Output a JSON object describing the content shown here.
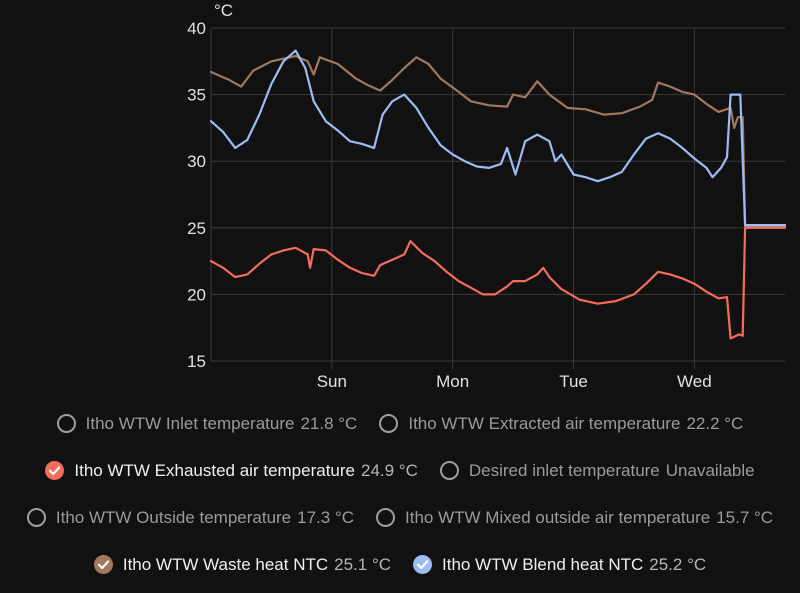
{
  "chart_data": {
    "type": "line",
    "unit_label": "°C",
    "ylim": [
      15,
      40
    ],
    "y_ticks": [
      15,
      20,
      25,
      30,
      35,
      40
    ],
    "xlim": [
      0,
      4.75
    ],
    "x_ticks": [
      {
        "x": 1,
        "label": "Sun"
      },
      {
        "x": 2,
        "label": "Mon"
      },
      {
        "x": 3,
        "label": "Tue"
      },
      {
        "x": 4,
        "label": "Wed"
      }
    ],
    "grid": true,
    "series": [
      {
        "name": "Itho WTW Waste heat NTC",
        "color": "#a1785b",
        "points": [
          [
            0,
            36.7
          ],
          [
            0.15,
            36.1
          ],
          [
            0.25,
            35.6
          ],
          [
            0.35,
            36.8
          ],
          [
            0.5,
            37.5
          ],
          [
            0.7,
            37.9
          ],
          [
            0.8,
            37.5
          ],
          [
            0.85,
            36.5
          ],
          [
            0.9,
            37.8
          ],
          [
            1.05,
            37.3
          ],
          [
            1.2,
            36.2
          ],
          [
            1.3,
            35.7
          ],
          [
            1.4,
            35.3
          ],
          [
            1.5,
            36.1
          ],
          [
            1.6,
            37
          ],
          [
            1.7,
            37.8
          ],
          [
            1.8,
            37.3
          ],
          [
            1.9,
            36.2
          ],
          [
            2.05,
            35.2
          ],
          [
            2.15,
            34.5
          ],
          [
            2.3,
            34.2
          ],
          [
            2.45,
            34.1
          ],
          [
            2.5,
            35
          ],
          [
            2.6,
            34.8
          ],
          [
            2.7,
            36
          ],
          [
            2.8,
            35
          ],
          [
            2.95,
            34
          ],
          [
            3.1,
            33.9
          ],
          [
            3.25,
            33.5
          ],
          [
            3.4,
            33.6
          ],
          [
            3.55,
            34.1
          ],
          [
            3.65,
            34.6
          ],
          [
            3.7,
            35.9
          ],
          [
            3.8,
            35.6
          ],
          [
            3.9,
            35.2
          ],
          [
            4.0,
            35
          ],
          [
            4.1,
            34.3
          ],
          [
            4.2,
            33.7
          ],
          [
            4.3,
            34
          ],
          [
            4.33,
            32.5
          ],
          [
            4.36,
            33.3
          ],
          [
            4.4,
            33.3
          ],
          [
            4.42,
            25.1
          ],
          [
            4.75,
            25.1
          ]
        ]
      },
      {
        "name": "Itho WTW Blend heat NTC",
        "color": "#9bbcf4",
        "points": [
          [
            0,
            33
          ],
          [
            0.1,
            32.2
          ],
          [
            0.2,
            31
          ],
          [
            0.3,
            31.6
          ],
          [
            0.4,
            33.5
          ],
          [
            0.5,
            35.8
          ],
          [
            0.6,
            37.5
          ],
          [
            0.7,
            38.3
          ],
          [
            0.78,
            37
          ],
          [
            0.85,
            34.5
          ],
          [
            0.95,
            33
          ],
          [
            1.05,
            32.3
          ],
          [
            1.15,
            31.5
          ],
          [
            1.25,
            31.3
          ],
          [
            1.35,
            31
          ],
          [
            1.42,
            33.5
          ],
          [
            1.5,
            34.5
          ],
          [
            1.6,
            35
          ],
          [
            1.7,
            34
          ],
          [
            1.8,
            32.5
          ],
          [
            1.9,
            31.2
          ],
          [
            2.0,
            30.5
          ],
          [
            2.1,
            30
          ],
          [
            2.2,
            29.6
          ],
          [
            2.3,
            29.5
          ],
          [
            2.4,
            29.8
          ],
          [
            2.45,
            31
          ],
          [
            2.52,
            29
          ],
          [
            2.6,
            31.5
          ],
          [
            2.7,
            32
          ],
          [
            2.8,
            31.5
          ],
          [
            2.85,
            30
          ],
          [
            2.9,
            30.5
          ],
          [
            3.0,
            29
          ],
          [
            3.1,
            28.8
          ],
          [
            3.2,
            28.5
          ],
          [
            3.3,
            28.8
          ],
          [
            3.4,
            29.2
          ],
          [
            3.5,
            30.5
          ],
          [
            3.6,
            31.7
          ],
          [
            3.7,
            32.1
          ],
          [
            3.8,
            31.7
          ],
          [
            3.9,
            31
          ],
          [
            4.0,
            30.2
          ],
          [
            4.1,
            29.5
          ],
          [
            4.15,
            28.8
          ],
          [
            4.22,
            29.5
          ],
          [
            4.27,
            30.3
          ],
          [
            4.3,
            35
          ],
          [
            4.38,
            35
          ],
          [
            4.42,
            25.2
          ],
          [
            4.75,
            25.2
          ]
        ]
      },
      {
        "name": "Itho WTW Exhausted air temperature",
        "color": "#f36d5b",
        "points": [
          [
            0,
            22.5
          ],
          [
            0.1,
            22
          ],
          [
            0.2,
            21.3
          ],
          [
            0.3,
            21.5
          ],
          [
            0.4,
            22.3
          ],
          [
            0.5,
            23
          ],
          [
            0.6,
            23.3
          ],
          [
            0.7,
            23.5
          ],
          [
            0.8,
            23
          ],
          [
            0.82,
            22
          ],
          [
            0.85,
            23.4
          ],
          [
            0.95,
            23.3
          ],
          [
            1.05,
            22.6
          ],
          [
            1.15,
            22
          ],
          [
            1.25,
            21.6
          ],
          [
            1.35,
            21.4
          ],
          [
            1.4,
            22.2
          ],
          [
            1.5,
            22.6
          ],
          [
            1.6,
            23
          ],
          [
            1.65,
            24
          ],
          [
            1.75,
            23.1
          ],
          [
            1.85,
            22.5
          ],
          [
            1.95,
            21.7
          ],
          [
            2.05,
            21
          ],
          [
            2.15,
            20.5
          ],
          [
            2.25,
            20
          ],
          [
            2.35,
            20
          ],
          [
            2.45,
            20.6
          ],
          [
            2.5,
            21
          ],
          [
            2.6,
            21
          ],
          [
            2.7,
            21.5
          ],
          [
            2.75,
            22
          ],
          [
            2.8,
            21.3
          ],
          [
            2.9,
            20.4
          ],
          [
            3.05,
            19.6
          ],
          [
            3.2,
            19.3
          ],
          [
            3.35,
            19.5
          ],
          [
            3.5,
            20
          ],
          [
            3.6,
            20.8
          ],
          [
            3.7,
            21.7
          ],
          [
            3.8,
            21.5
          ],
          [
            3.9,
            21.2
          ],
          [
            4.0,
            20.8
          ],
          [
            4.1,
            20.2
          ],
          [
            4.2,
            19.7
          ],
          [
            4.27,
            19.8
          ],
          [
            4.3,
            16.7
          ],
          [
            4.37,
            17
          ],
          [
            4.4,
            16.9
          ],
          [
            4.42,
            25
          ],
          [
            4.75,
            25
          ]
        ]
      }
    ]
  },
  "legend": [
    [
      {
        "name": "Itho WTW Inlet temperature",
        "value": "21.8 °C",
        "checked": false,
        "color": "#9e9e9e",
        "icon": "circle-outline-icon"
      },
      {
        "name": "Itho WTW Extracted air temperature",
        "value": "22.2 °C",
        "checked": false,
        "color": "#9e9e9e",
        "icon": "circle-outline-icon"
      }
    ],
    [
      {
        "name": "Itho WTW Exhausted air temperature",
        "value": "24.9 °C",
        "checked": true,
        "color": "#f36d5b",
        "icon": "check-circle-icon"
      },
      {
        "name": "Desired inlet temperature",
        "value": "Unavailable",
        "checked": false,
        "color": "#9e9e9e",
        "icon": "circle-outline-icon"
      }
    ],
    [
      {
        "name": "Itho WTW Outside temperature",
        "value": "17.3 °C",
        "checked": false,
        "color": "#9e9e9e",
        "icon": "circle-outline-icon"
      },
      {
        "name": "Itho WTW Mixed outside air temperature",
        "value": "15.7 °C",
        "checked": false,
        "color": "#9e9e9e",
        "icon": "circle-outline-icon"
      }
    ],
    [
      {
        "name": "Itho WTW Waste heat NTC",
        "value": "25.1 °C",
        "checked": true,
        "color": "#a1785b",
        "icon": "check-circle-icon"
      },
      {
        "name": "Itho WTW Blend heat NTC",
        "value": "25.2 °C",
        "checked": true,
        "color": "#9bbcf4",
        "icon": "check-circle-icon"
      }
    ]
  ]
}
